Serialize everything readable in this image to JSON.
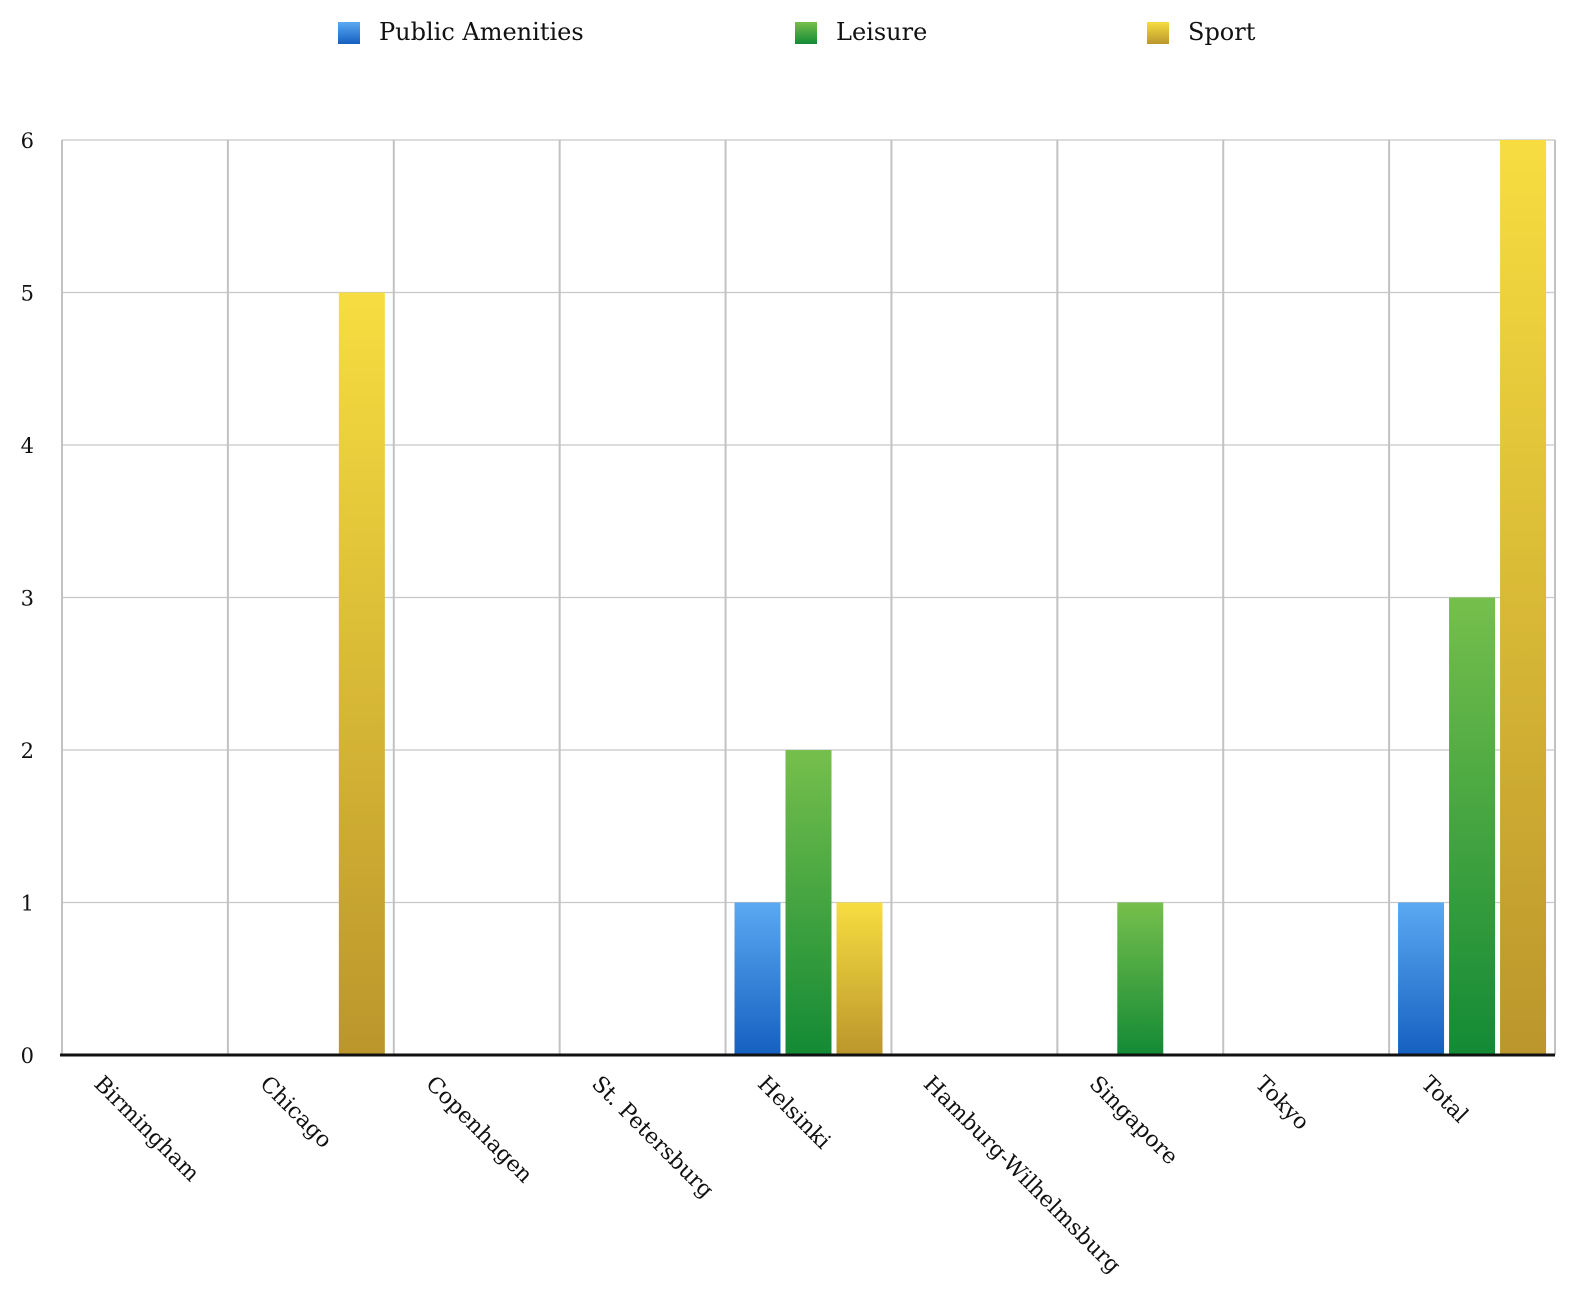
{
  "chart_data": {
    "type": "bar",
    "title": "",
    "xlabel": "",
    "ylabel": "",
    "categories": [
      "Birmingham",
      "Chicago",
      "Copenhagen",
      "St. Petersburg",
      "Helsinki",
      "Hamburg-Wilhelmsburg",
      "Singapore",
      "Tokyo",
      "Total"
    ],
    "series": [
      {
        "name": "Public Amenities",
        "values": [
          0,
          0,
          0,
          0,
          1,
          0,
          0,
          0,
          1
        ],
        "color_top": "#5aa9f2",
        "color_bottom": "#1560c0"
      },
      {
        "name": "Leisure",
        "values": [
          0,
          0,
          0,
          0,
          2,
          0,
          1,
          0,
          3
        ],
        "color_top": "#76bf4c",
        "color_bottom": "#138a35"
      },
      {
        "name": "Sport",
        "values": [
          0,
          5,
          0,
          0,
          1,
          0,
          0,
          0,
          6
        ],
        "color_top": "#f7dd40",
        "color_bottom": "#bb962c"
      }
    ],
    "yticks": [
      "0",
      "1",
      "2",
      "3",
      "4",
      "5",
      "6"
    ],
    "ylim": [
      0,
      6
    ],
    "grid": true,
    "legend_position": "top"
  }
}
